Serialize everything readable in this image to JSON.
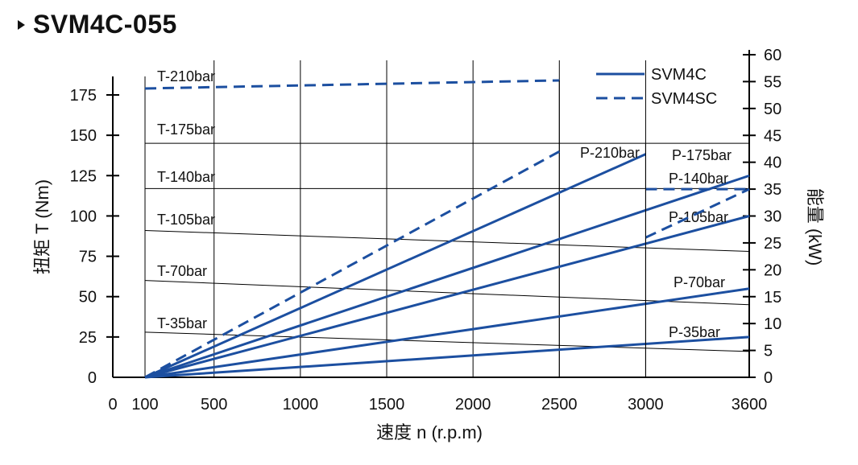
{
  "header": {
    "title": "SVM4C-055"
  },
  "chart_data": {
    "type": "line",
    "title": "SVM4C-055",
    "xlabel": "速度 n (r.p.m)",
    "ylabel_left": "扭矩 T (Nm)",
    "ylabel_right": "能量 (kW)",
    "x_ticks": [
      0,
      100,
      500,
      1000,
      1500,
      2000,
      2500,
      3000,
      3600
    ],
    "y_left_ticks": [
      0,
      25,
      50,
      75,
      100,
      125,
      150,
      175
    ],
    "y_right_ticks": [
      0,
      5,
      10,
      15,
      20,
      25,
      30,
      35,
      40,
      45,
      50,
      55,
      60
    ],
    "ylim_left": [
      0,
      175
    ],
    "ylim_right": [
      0,
      60
    ],
    "legend": {
      "position": "top-right",
      "entries": [
        {
          "label": "SVM4C",
          "style": "solid"
        },
        {
          "label": "SVM4SC",
          "style": "dashed"
        }
      ]
    },
    "torque_series": [
      {
        "name": "T-35bar",
        "axis": "left",
        "style": "thin",
        "x": [
          100,
          3600
        ],
        "y": [
          28,
          16
        ]
      },
      {
        "name": "T-70bar",
        "axis": "left",
        "style": "thin",
        "x": [
          100,
          3600
        ],
        "y": [
          60,
          45
        ]
      },
      {
        "name": "T-105bar",
        "axis": "left",
        "style": "thin",
        "x": [
          100,
          3600
        ],
        "y": [
          91,
          78
        ]
      },
      {
        "name": "T-140bar",
        "axis": "left",
        "style": "thin",
        "x": [
          100,
          3600
        ],
        "y": [
          117,
          117
        ]
      },
      {
        "name": "T-175bar",
        "axis": "left",
        "style": "thin",
        "x": [
          100,
          3600
        ],
        "y": [
          145,
          145
        ]
      },
      {
        "name": "T-210bar",
        "axis": "left",
        "style": "dashed",
        "x": [
          100,
          2500
        ],
        "y": [
          179,
          184
        ]
      }
    ],
    "power_series": [
      {
        "name": "P-35bar",
        "axis": "right",
        "style": "solid",
        "x": [
          100,
          3600
        ],
        "y": [
          0,
          7.5
        ]
      },
      {
        "name": "P-70bar",
        "axis": "right",
        "style": "solid",
        "x": [
          100,
          3600
        ],
        "y": [
          0,
          16.5
        ]
      },
      {
        "name": "P-105bar",
        "axis": "right",
        "style": "solid",
        "x": [
          100,
          3600
        ],
        "y": [
          0,
          30
        ]
      },
      {
        "name": "P-140bar",
        "axis": "right",
        "style": "solid",
        "x": [
          100,
          3600
        ],
        "y": [
          0,
          37.5
        ]
      },
      {
        "name": "P-175bar",
        "axis": "right",
        "style": "solid",
        "x": [
          100,
          3000
        ],
        "y": [
          0,
          41.5
        ]
      },
      {
        "name": "P-210bar",
        "axis": "right",
        "style": "dashed",
        "x": [
          100,
          2500
        ],
        "y": [
          0,
          42
        ]
      },
      {
        "name": "",
        "axis": "right",
        "style": "dashed",
        "x": [
          3000,
          3600
        ],
        "y": [
          26,
          35
        ]
      },
      {
        "name": "",
        "axis": "right",
        "style": "dashed",
        "x": [
          3000,
          3600
        ],
        "y": [
          35,
          35
        ]
      }
    ],
    "series_label_text": {
      "T-35bar": "T-35bar",
      "T-70bar": "T-70bar",
      "T-105bar": "T-105bar",
      "T-140bar": "T-140bar",
      "T-175bar": "T-175bar",
      "T-210bar": "T-210bar",
      "P-35bar": "P-35bar",
      "P-70bar": "P-70bar",
      "P-105bar": "P-105bar",
      "P-140bar": "P-140bar",
      "P-175bar": "P-175bar",
      "P-210bar": "P-210bar"
    },
    "colors": {
      "series": "#1c4fa0",
      "grid": "#000000",
      "text": "#111111"
    }
  }
}
